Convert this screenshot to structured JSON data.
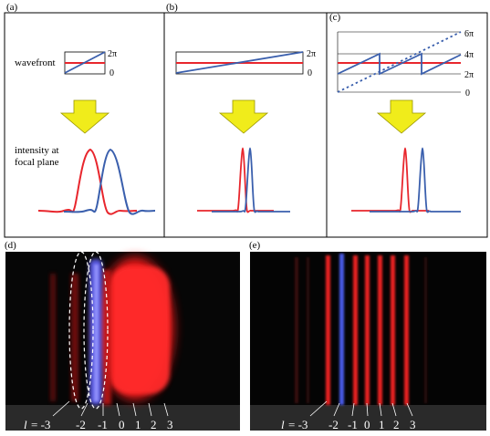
{
  "colors": {
    "red": "#e8262d",
    "blue": "#3a5fad",
    "arrow": "#f0ec1b",
    "arrow_stroke": "#9a9600"
  },
  "panel_a": {
    "label": "(a)",
    "wavefront_label": "wavefront",
    "intensity_label_line1": "intensity at",
    "intensity_label_line2": "focal plane",
    "tick_top": "2π",
    "tick_bottom": "0"
  },
  "panel_b": {
    "label": "(b)",
    "tick_top": "2π",
    "tick_bottom": "0"
  },
  "panel_c": {
    "label": "(c)",
    "ticks": [
      "6π",
      "4π",
      "2π",
      "0"
    ]
  },
  "panel_d": {
    "label": "(d)",
    "l_prefix": "l",
    "orders": [
      "= -3",
      "-2",
      "-1",
      "0",
      "1",
      "2",
      "3"
    ]
  },
  "panel_e": {
    "label": "(e)",
    "l_prefix": "l",
    "orders": [
      "= -3",
      "-2",
      "-1",
      "0",
      "1",
      "2",
      "3"
    ]
  }
}
